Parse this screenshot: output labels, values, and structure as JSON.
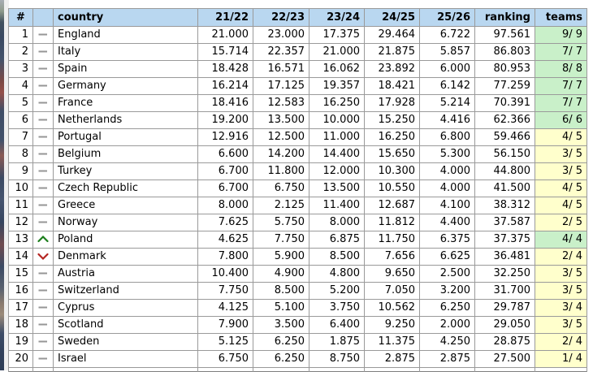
{
  "colors": {
    "header_bg": "#b9d7f0",
    "teams_green": "#c9f0c9",
    "teams_yellow": "#ffffcc",
    "cell_border": "#9a9a9a",
    "outer_border": "#7f7f7f",
    "movement_same": "#969696",
    "movement_up": "#1c7e1c",
    "movement_down": "#b42420"
  },
  "table": {
    "columns": [
      {
        "key": "rank",
        "label": "#"
      },
      {
        "key": "movement",
        "label": ""
      },
      {
        "key": "country",
        "label": "country"
      },
      {
        "key": "s2122",
        "label": "21/22"
      },
      {
        "key": "s2223",
        "label": "22/23"
      },
      {
        "key": "s2324",
        "label": "23/24"
      },
      {
        "key": "s2425",
        "label": "24/25"
      },
      {
        "key": "s2526",
        "label": "25/26"
      },
      {
        "key": "ranking",
        "label": "ranking"
      },
      {
        "key": "teams",
        "label": "teams"
      }
    ],
    "rows": [
      {
        "rank": "1",
        "movement": "same",
        "country": "England",
        "s2122": "21.000",
        "s2223": "23.000",
        "s2324": "17.375",
        "s2425": "29.464",
        "s2526": "6.722",
        "ranking": "97.561",
        "teams": "9/ 9",
        "teams_status": "green"
      },
      {
        "rank": "2",
        "movement": "same",
        "country": "Italy",
        "s2122": "15.714",
        "s2223": "22.357",
        "s2324": "21.000",
        "s2425": "21.875",
        "s2526": "5.857",
        "ranking": "86.803",
        "teams": "7/ 7",
        "teams_status": "green"
      },
      {
        "rank": "3",
        "movement": "same",
        "country": "Spain",
        "s2122": "18.428",
        "s2223": "16.571",
        "s2324": "16.062",
        "s2425": "23.892",
        "s2526": "6.000",
        "ranking": "80.953",
        "teams": "8/ 8",
        "teams_status": "green"
      },
      {
        "rank": "4",
        "movement": "same",
        "country": "Germany",
        "s2122": "16.214",
        "s2223": "17.125",
        "s2324": "19.357",
        "s2425": "18.421",
        "s2526": "6.142",
        "ranking": "77.259",
        "teams": "7/ 7",
        "teams_status": "green"
      },
      {
        "rank": "5",
        "movement": "same",
        "country": "France",
        "s2122": "18.416",
        "s2223": "12.583",
        "s2324": "16.250",
        "s2425": "17.928",
        "s2526": "5.214",
        "ranking": "70.391",
        "teams": "7/ 7",
        "teams_status": "green"
      },
      {
        "rank": "6",
        "movement": "same",
        "country": "Netherlands",
        "s2122": "19.200",
        "s2223": "13.500",
        "s2324": "10.000",
        "s2425": "15.250",
        "s2526": "4.416",
        "ranking": "62.366",
        "teams": "6/ 6",
        "teams_status": "green"
      },
      {
        "rank": "7",
        "movement": "same",
        "country": "Portugal",
        "s2122": "12.916",
        "s2223": "12.500",
        "s2324": "11.000",
        "s2425": "16.250",
        "s2526": "6.800",
        "ranking": "59.466",
        "teams": "4/ 5",
        "teams_status": "yellow"
      },
      {
        "rank": "8",
        "movement": "same",
        "country": "Belgium",
        "s2122": "6.600",
        "s2223": "14.200",
        "s2324": "14.400",
        "s2425": "15.650",
        "s2526": "5.300",
        "ranking": "56.150",
        "teams": "3/ 5",
        "teams_status": "yellow"
      },
      {
        "rank": "9",
        "movement": "same",
        "country": "Turkey",
        "s2122": "6.700",
        "s2223": "11.800",
        "s2324": "12.000",
        "s2425": "10.300",
        "s2526": "4.000",
        "ranking": "44.800",
        "teams": "3/ 5",
        "teams_status": "yellow"
      },
      {
        "rank": "10",
        "movement": "same",
        "country": "Czech Republic",
        "s2122": "6.700",
        "s2223": "6.750",
        "s2324": "13.500",
        "s2425": "10.550",
        "s2526": "4.000",
        "ranking": "41.500",
        "teams": "4/ 5",
        "teams_status": "yellow"
      },
      {
        "rank": "11",
        "movement": "same",
        "country": "Greece",
        "s2122": "8.000",
        "s2223": "2.125",
        "s2324": "11.400",
        "s2425": "12.687",
        "s2526": "4.100",
        "ranking": "38.312",
        "teams": "4/ 5",
        "teams_status": "yellow"
      },
      {
        "rank": "12",
        "movement": "same",
        "country": "Norway",
        "s2122": "7.625",
        "s2223": "5.750",
        "s2324": "8.000",
        "s2425": "11.812",
        "s2526": "4.400",
        "ranking": "37.587",
        "teams": "2/ 5",
        "teams_status": "yellow"
      },
      {
        "rank": "13",
        "movement": "up",
        "country": "Poland",
        "s2122": "4.625",
        "s2223": "7.750",
        "s2324": "6.875",
        "s2425": "11.750",
        "s2526": "6.375",
        "ranking": "37.375",
        "teams": "4/ 4",
        "teams_status": "green"
      },
      {
        "rank": "14",
        "movement": "down",
        "country": "Denmark",
        "s2122": "7.800",
        "s2223": "5.900",
        "s2324": "8.500",
        "s2425": "7.656",
        "s2526": "6.625",
        "ranking": "36.481",
        "teams": "2/ 4",
        "teams_status": "yellow"
      },
      {
        "rank": "15",
        "movement": "same",
        "country": "Austria",
        "s2122": "10.400",
        "s2223": "4.900",
        "s2324": "4.800",
        "s2425": "9.650",
        "s2526": "2.500",
        "ranking": "32.250",
        "teams": "3/ 5",
        "teams_status": "yellow"
      },
      {
        "rank": "16",
        "movement": "same",
        "country": "Switzerland",
        "s2122": "7.750",
        "s2223": "8.500",
        "s2324": "5.200",
        "s2425": "7.050",
        "s2526": "3.200",
        "ranking": "31.700",
        "teams": "3/ 5",
        "teams_status": "yellow"
      },
      {
        "rank": "17",
        "movement": "same",
        "country": "Cyprus",
        "s2122": "4.125",
        "s2223": "5.100",
        "s2324": "3.750",
        "s2425": "10.562",
        "s2526": "6.250",
        "ranking": "29.787",
        "teams": "3/ 4",
        "teams_status": "yellow"
      },
      {
        "rank": "18",
        "movement": "same",
        "country": "Scotland",
        "s2122": "7.900",
        "s2223": "3.500",
        "s2324": "6.400",
        "s2425": "9.250",
        "s2526": "2.000",
        "ranking": "29.050",
        "teams": "3/ 5",
        "teams_status": "yellow"
      },
      {
        "rank": "19",
        "movement": "same",
        "country": "Sweden",
        "s2122": "5.125",
        "s2223": "6.250",
        "s2324": "1.875",
        "s2425": "11.375",
        "s2526": "4.250",
        "ranking": "28.875",
        "teams": "2/ 4",
        "teams_status": "yellow"
      },
      {
        "rank": "20",
        "movement": "same",
        "country": "Israel",
        "s2122": "6.750",
        "s2223": "6.250",
        "s2324": "8.750",
        "s2425": "2.875",
        "s2526": "2.875",
        "ranking": "27.500",
        "teams": "1/ 4",
        "teams_status": "yellow"
      }
    ]
  }
}
